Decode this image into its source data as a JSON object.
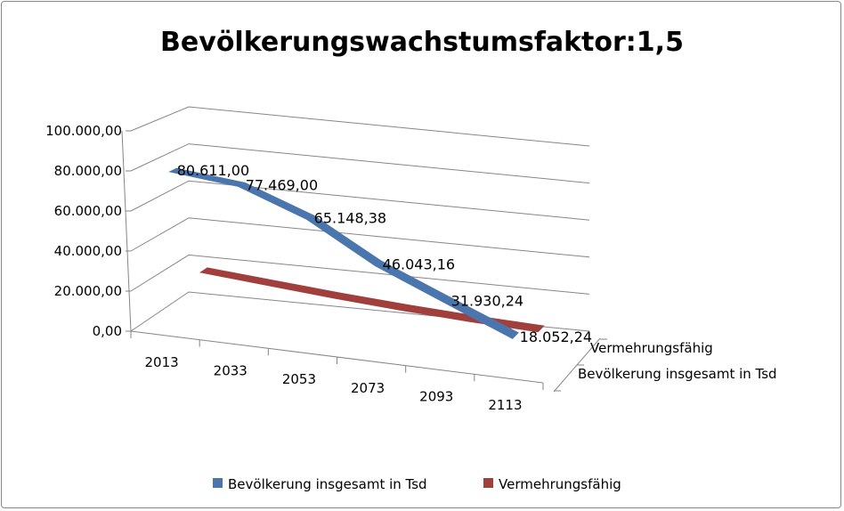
{
  "chart_data": {
    "type": "line",
    "variant": "3d-line",
    "title": "Bevölkerungswachstumsfaktor:1,5",
    "categories": [
      "2013",
      "2033",
      "2053",
      "2073",
      "2093",
      "2113"
    ],
    "ylim": [
      0,
      100000
    ],
    "yticks": [
      "0,00",
      "20.000,00",
      "40.000,00",
      "60.000,00",
      "80.000,00",
      "100.000,00"
    ],
    "grid": true,
    "legend_position": "bottom",
    "series": [
      {
        "name": "Bevölkerung insgesamt in Tsd",
        "color": "#4a76ad",
        "values": [
          80611.0,
          77469.0,
          65148.38,
          46043.16,
          31930.24,
          18052.24
        ],
        "data_labels": [
          "80.611,00",
          "77.469,00",
          "65.148,38",
          "46.043,16",
          "31.930,24",
          "18.052,24"
        ]
      },
      {
        "name": "Vermehrungsfähig",
        "color": "#a03f3c",
        "values": [
          20000,
          17000,
          14000,
          11500,
          9500,
          8000
        ]
      }
    ],
    "depth_labels": [
      "Vermehrungsfähig",
      "Bevölkerung insgesamt in Tsd"
    ]
  }
}
